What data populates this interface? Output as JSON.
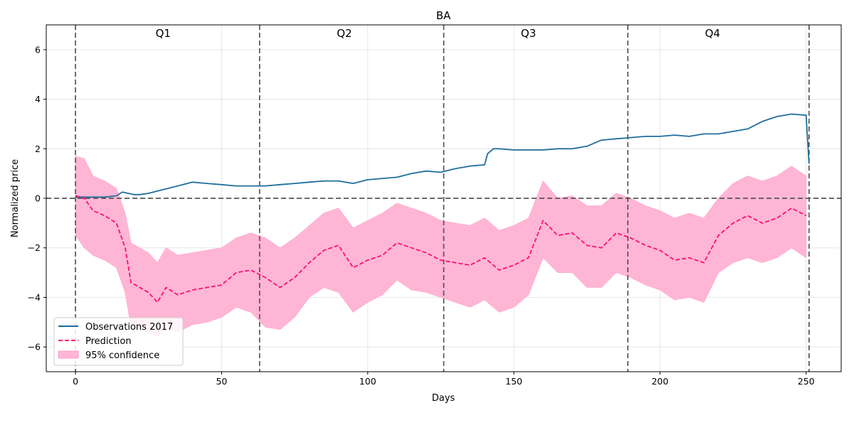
{
  "chart_data": {
    "type": "line",
    "title": "BA",
    "xlabel": "Days",
    "ylabel": "Normalized price",
    "xlim": [
      -10,
      262
    ],
    "ylim": [
      -7,
      7
    ],
    "xticks": [
      0,
      50,
      100,
      150,
      200,
      250
    ],
    "yticks": [
      -6,
      -4,
      -2,
      0,
      2,
      4,
      6
    ],
    "grid": true,
    "legend_position": "lower-left",
    "quarter_dividers": [
      0,
      63,
      126,
      189,
      251
    ],
    "quarters": [
      {
        "label": "Q1",
        "x": 30
      },
      {
        "label": "Q2",
        "x": 92
      },
      {
        "label": "Q3",
        "x": 155
      },
      {
        "label": "Q4",
        "x": 218
      }
    ],
    "zero_line": 0,
    "series": [
      {
        "name": "Observations 2017",
        "color": "#1f6e9c",
        "style": "solid",
        "x": [
          0,
          5,
          10,
          14,
          16,
          20,
          22,
          25,
          30,
          35,
          40,
          45,
          50,
          55,
          60,
          65,
          70,
          75,
          80,
          85,
          90,
          95,
          100,
          105,
          110,
          115,
          120,
          125,
          130,
          135,
          140,
          141,
          143,
          145,
          150,
          155,
          160,
          165,
          170,
          175,
          180,
          185,
          190,
          195,
          200,
          205,
          210,
          215,
          220,
          225,
          230,
          235,
          240,
          245,
          250,
          251
        ],
        "values": [
          0.05,
          0.05,
          0.05,
          0.1,
          0.25,
          0.15,
          0.15,
          0.2,
          0.35,
          0.5,
          0.65,
          0.6,
          0.55,
          0.5,
          0.5,
          0.5,
          0.55,
          0.6,
          0.65,
          0.7,
          0.7,
          0.6,
          0.75,
          0.8,
          0.85,
          1.0,
          1.1,
          1.05,
          1.2,
          1.3,
          1.35,
          1.8,
          2.0,
          2.0,
          1.95,
          1.95,
          1.95,
          2.0,
          2.0,
          2.1,
          2.35,
          2.4,
          2.45,
          2.5,
          2.5,
          2.55,
          2.5,
          2.6,
          2.6,
          2.7,
          2.8,
          3.1,
          3.3,
          3.4,
          3.35,
          1.4
        ]
      },
      {
        "name": "Prediction",
        "color": "#ff0b72",
        "style": "dashed",
        "x": [
          0,
          3,
          6,
          10,
          14,
          17,
          19,
          22,
          25,
          28,
          31,
          35,
          40,
          45,
          50,
          55,
          60,
          65,
          70,
          75,
          80,
          85,
          90,
          95,
          100,
          105,
          110,
          115,
          120,
          125,
          130,
          135,
          140,
          145,
          150,
          155,
          160,
          165,
          170,
          175,
          180,
          185,
          190,
          195,
          200,
          205,
          210,
          215,
          220,
          225,
          230,
          235,
          240,
          245,
          250
        ],
        "values": [
          0.1,
          0.0,
          -0.5,
          -0.7,
          -1.0,
          -2.0,
          -3.4,
          -3.6,
          -3.8,
          -4.2,
          -3.6,
          -3.9,
          -3.7,
          -3.6,
          -3.5,
          -3.0,
          -2.9,
          -3.2,
          -3.6,
          -3.2,
          -2.6,
          -2.1,
          -1.9,
          -2.8,
          -2.5,
          -2.3,
          -1.8,
          -2.0,
          -2.2,
          -2.5,
          -2.6,
          -2.7,
          -2.4,
          -2.9,
          -2.7,
          -2.4,
          -0.9,
          -1.5,
          -1.4,
          -1.9,
          -2.0,
          -1.4,
          -1.6,
          -1.9,
          -2.1,
          -2.5,
          -2.4,
          -2.6,
          -1.5,
          -1.0,
          -0.7,
          -1.0,
          -0.8,
          -0.4,
          -0.7
        ]
      }
    ],
    "band": {
      "name": "95% confidence",
      "color": "#ffb6d5",
      "x": [
        0,
        3,
        6,
        10,
        14,
        17,
        19,
        22,
        25,
        28,
        31,
        35,
        40,
        45,
        50,
        55,
        60,
        65,
        70,
        75,
        80,
        85,
        90,
        95,
        100,
        105,
        110,
        115,
        120,
        125,
        130,
        135,
        140,
        145,
        150,
        155,
        160,
        165,
        170,
        175,
        180,
        185,
        190,
        195,
        200,
        205,
        210,
        215,
        220,
        225,
        230,
        235,
        240,
        245,
        250
      ],
      "lower": [
        -1.5,
        -2.0,
        -2.3,
        -2.5,
        -2.8,
        -3.8,
        -5.2,
        -5.3,
        -5.4,
        -5.6,
        -5.2,
        -5.4,
        -5.1,
        -5.0,
        -4.8,
        -4.4,
        -4.6,
        -5.2,
        -5.3,
        -4.8,
        -4.0,
        -3.6,
        -3.8,
        -4.6,
        -4.2,
        -3.9,
        -3.3,
        -3.7,
        -3.8,
        -4.0,
        -4.2,
        -4.4,
        -4.1,
        -4.6,
        -4.4,
        -3.9,
        -2.4,
        -3.0,
        -3.0,
        -3.6,
        -3.6,
        -3.0,
        -3.2,
        -3.5,
        -3.7,
        -4.1,
        -4.0,
        -4.2,
        -3.0,
        -2.6,
        -2.4,
        -2.6,
        -2.4,
        -2.0,
        -2.4
      ],
      "upper": [
        1.7,
        1.6,
        0.9,
        0.7,
        0.4,
        -0.6,
        -1.8,
        -2.0,
        -2.2,
        -2.6,
        -2.0,
        -2.3,
        -2.2,
        -2.1,
        -2.0,
        -1.6,
        -1.4,
        -1.6,
        -2.0,
        -1.6,
        -1.1,
        -0.6,
        -0.4,
        -1.2,
        -0.9,
        -0.6,
        -0.2,
        -0.4,
        -0.6,
        -0.9,
        -1.0,
        -1.1,
        -0.8,
        -1.3,
        -1.1,
        -0.8,
        0.7,
        0.0,
        0.1,
        -0.3,
        -0.3,
        0.2,
        0.0,
        -0.3,
        -0.5,
        -0.8,
        -0.6,
        -0.8,
        0.0,
        0.6,
        0.9,
        0.7,
        0.9,
        1.3,
        0.9
      ]
    }
  }
}
